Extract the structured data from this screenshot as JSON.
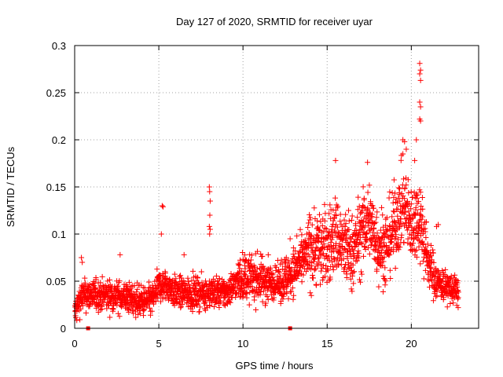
{
  "chart_data": {
    "type": "scatter",
    "title": "Day 127 of 2020, SRMTID for receiver uyar",
    "xlabel": "GPS time / hours",
    "ylabel": "SRMTID / TECUs",
    "xlim": [
      0,
      24
    ],
    "ylim": [
      0,
      0.3
    ],
    "grid": true,
    "marker": "+",
    "color": "#ff0000",
    "xticks": [
      0,
      5,
      10,
      15,
      20
    ],
    "xtick_labels": [
      "0",
      "5",
      "10",
      "15",
      "20"
    ],
    "yticks": [
      0,
      0.05,
      0.1,
      0.15,
      0.2,
      0.25,
      0.3
    ],
    "ytick_labels": [
      "0",
      "0.05",
      "0.1",
      "0.15",
      "0.2",
      "0.25",
      "0.3"
    ],
    "series": [
      {
        "name": "uyar",
        "trend_points": [
          [
            0,
            0.015
          ],
          [
            0.1,
            0.02
          ],
          [
            0.3,
            0.03
          ],
          [
            0.5,
            0.035
          ],
          [
            1,
            0.035
          ],
          [
            2,
            0.035
          ],
          [
            3,
            0.033
          ],
          [
            4,
            0.028
          ],
          [
            4.6,
            0.03
          ],
          [
            5,
            0.045
          ],
          [
            5.5,
            0.045
          ],
          [
            6,
            0.038
          ],
          [
            7,
            0.037
          ],
          [
            8,
            0.038
          ],
          [
            9,
            0.038
          ],
          [
            10,
            0.055
          ],
          [
            11,
            0.052
          ],
          [
            12,
            0.048
          ],
          [
            12.7,
            0.055
          ],
          [
            13.5,
            0.07
          ],
          [
            14,
            0.085
          ],
          [
            15,
            0.085
          ],
          [
            15.5,
            0.1
          ],
          [
            16,
            0.085
          ],
          [
            16.5,
            0.08
          ],
          [
            17,
            0.1
          ],
          [
            17.5,
            0.115
          ],
          [
            18,
            0.09
          ],
          [
            18.5,
            0.085
          ],
          [
            19,
            0.11
          ],
          [
            19.5,
            0.13
          ],
          [
            20,
            0.11
          ],
          [
            20.5,
            0.12
          ],
          [
            21,
            0.07
          ],
          [
            21.5,
            0.05
          ],
          [
            22,
            0.045
          ],
          [
            22.5,
            0.04
          ],
          [
            22.8,
            0.04
          ]
        ],
        "outlier_points": [
          [
            0.4,
            0.075
          ],
          [
            0.45,
            0.07
          ],
          [
            2.7,
            0.078
          ],
          [
            5.2,
            0.13
          ],
          [
            5.25,
            0.129
          ],
          [
            5.15,
            0.1
          ],
          [
            8.0,
            0.15
          ],
          [
            8.02,
            0.145
          ],
          [
            8.05,
            0.135
          ],
          [
            8.03,
            0.12
          ],
          [
            8.0,
            0.108
          ],
          [
            8.05,
            0.105
          ],
          [
            8.02,
            0.1
          ],
          [
            20.5,
            0.281
          ],
          [
            20.55,
            0.274
          ],
          [
            20.5,
            0.27
          ],
          [
            20.55,
            0.263
          ],
          [
            20.5,
            0.24
          ],
          [
            20.55,
            0.235
          ],
          [
            20.5,
            0.222
          ],
          [
            20.55,
            0.22
          ],
          [
            15.5,
            0.178
          ],
          [
            17.4,
            0.176
          ],
          [
            19.5,
            0.2
          ],
          [
            19.6,
            0.198
          ],
          [
            19.7,
            0.19
          ],
          [
            19.5,
            0.185
          ],
          [
            20.3,
            0.2
          ],
          [
            20.2,
            0.178
          ],
          [
            21.5,
            0.108
          ],
          [
            21.6,
            0.11
          ],
          [
            11.5,
            0.078
          ],
          [
            6.5,
            0.078
          ],
          [
            12.8,
            0.095
          ],
          [
            13.2,
            0.098
          ]
        ],
        "markers_on_axis": [
          0.8,
          12.8
        ]
      }
    ]
  }
}
